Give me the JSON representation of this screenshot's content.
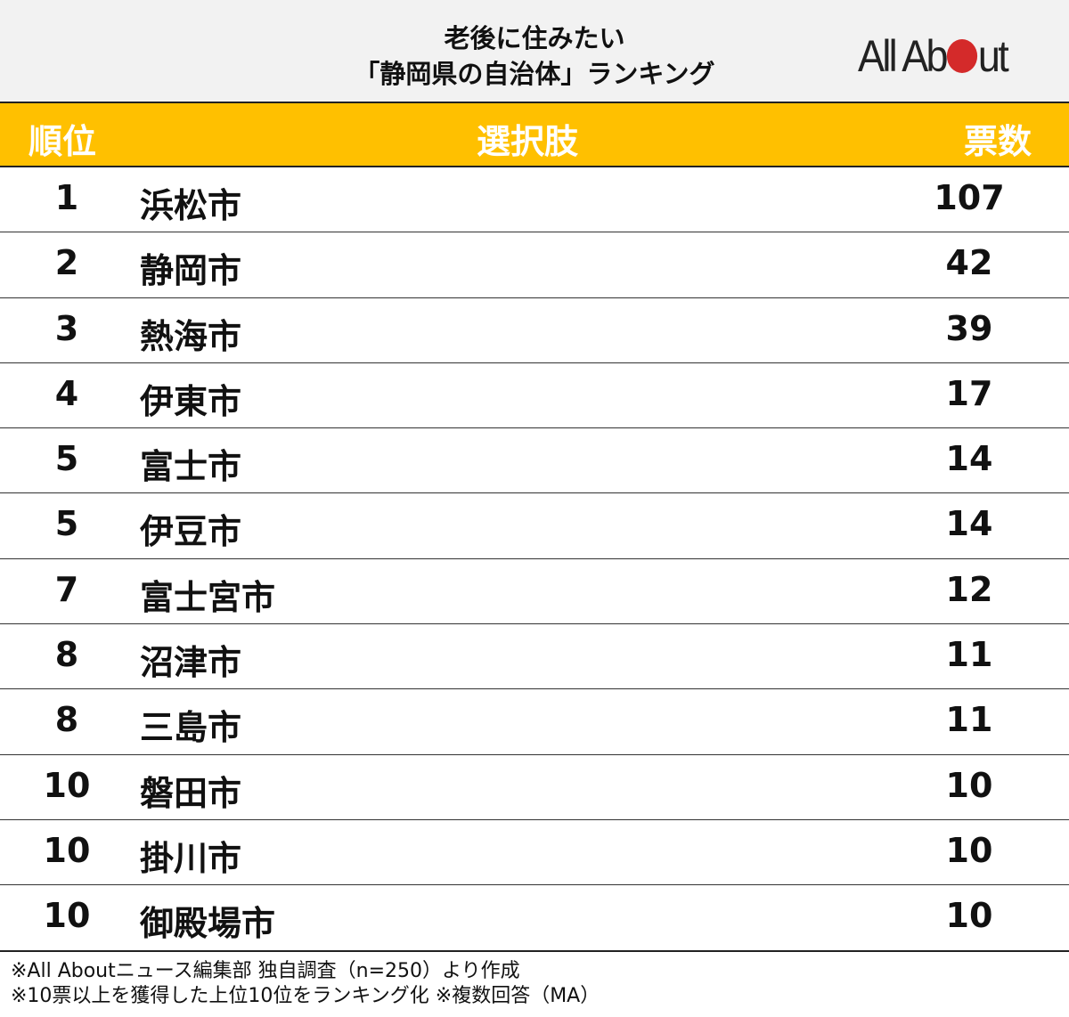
{
  "title": {
    "line1": "老後に住みたい",
    "line2": "「静岡県の自治体」ランキング"
  },
  "logo": {
    "text": "All About",
    "brand_color": "#d42a2a"
  },
  "header": {
    "rank": "順位",
    "choice": "選択肢",
    "votes": "票数",
    "bg_color": "#ffc000"
  },
  "rows": [
    {
      "rank": "1",
      "name": "浜松市",
      "votes": "107"
    },
    {
      "rank": "2",
      "name": "静岡市",
      "votes": "42"
    },
    {
      "rank": "3",
      "name": "熱海市",
      "votes": "39"
    },
    {
      "rank": "4",
      "name": "伊東市",
      "votes": "17"
    },
    {
      "rank": "5",
      "name": "富士市",
      "votes": "14"
    },
    {
      "rank": "5",
      "name": "伊豆市",
      "votes": "14"
    },
    {
      "rank": "7",
      "name": "富士宮市",
      "votes": "12"
    },
    {
      "rank": "8",
      "name": "沼津市",
      "votes": "11"
    },
    {
      "rank": "8",
      "name": "三島市",
      "votes": "11"
    },
    {
      "rank": "10",
      "name": "磐田市",
      "votes": "10"
    },
    {
      "rank": "10",
      "name": "掛川市",
      "votes": "10"
    },
    {
      "rank": "10",
      "name": "御殿場市",
      "votes": "10"
    }
  ],
  "footer": {
    "line1": "※All Aboutニュース編集部 独自調査（n=250）より作成",
    "line2": "※10票以上を獲得した上位10位をランキング化 ※複数回答（MA）"
  }
}
